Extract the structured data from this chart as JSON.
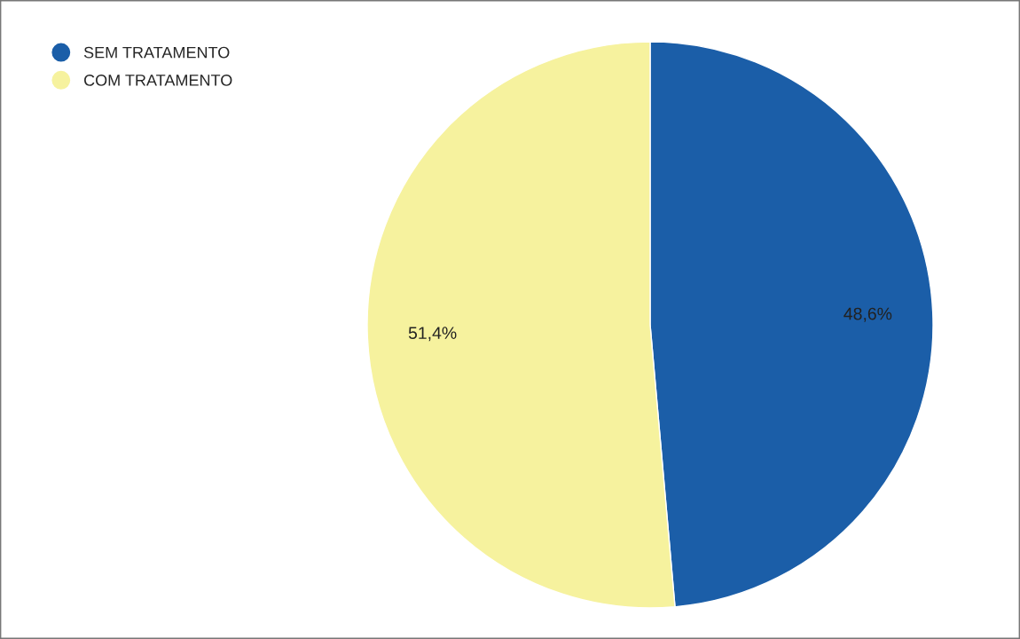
{
  "chart_data": {
    "type": "pie",
    "categories": [
      "SEM TRATAMENTO",
      "COM TRATAMENTO"
    ],
    "values": [
      48.6,
      51.4
    ],
    "colors": [
      "#1b5ea8",
      "#f6f29e"
    ],
    "value_labels": [
      "48,6%",
      "51,4%"
    ],
    "legend": "top left"
  }
}
